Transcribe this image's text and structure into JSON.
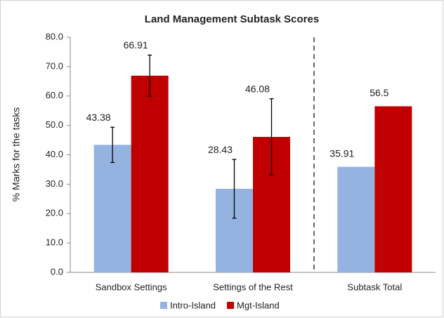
{
  "chart_data": {
    "type": "bar",
    "title": "Land Management Subtask Scores",
    "y_label": "% Marks for the tasks",
    "categories": [
      "Sandbox Settings",
      "Settings of the Rest",
      "Subtask Total"
    ],
    "series": [
      {
        "name": "Intro-Island",
        "color": "#95b3e0",
        "values": [
          43.38,
          28.43,
          35.91
        ],
        "errors": [
          6,
          10,
          null
        ]
      },
      {
        "name": "Mgt-Island",
        "color": "#c00000",
        "values": [
          66.91,
          46.08,
          56.5
        ],
        "errors": [
          7,
          13,
          null
        ]
      }
    ],
    "ylim": [
      0,
      80
    ],
    "yticks": [
      {
        "value": 0,
        "label": "0.0"
      },
      {
        "value": 10,
        "label": "10.0"
      },
      {
        "value": 20,
        "label": "20.0"
      },
      {
        "value": 30,
        "label": "30.0"
      },
      {
        "value": 40,
        "label": "40.0"
      },
      {
        "value": 50,
        "label": "50.0"
      },
      {
        "value": 60,
        "label": "60.0"
      },
      {
        "value": 70,
        "label": "70.0"
      },
      {
        "value": 80,
        "label": "80.0"
      }
    ],
    "legend": "bottom"
  }
}
